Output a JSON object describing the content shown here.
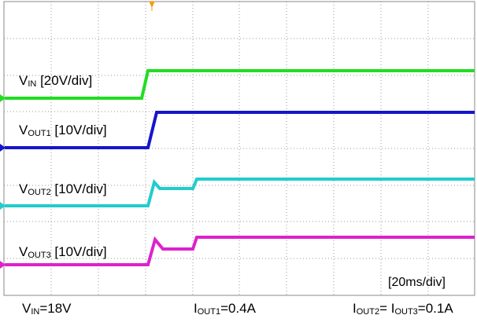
{
  "traces": [
    {
      "main": "V",
      "sub": "IN",
      "scale": "[20V/div]"
    },
    {
      "main": "V",
      "sub": "OUT1",
      "scale": "[10V/div]"
    },
    {
      "main": "V",
      "sub": "OUT2",
      "scale": "[10V/div]"
    },
    {
      "main": "V",
      "sub": "OUT3",
      "scale": "[10V/div]"
    }
  ],
  "timebase": "[20ms/div]",
  "footer": {
    "vin": {
      "main": "V",
      "sub": "IN",
      "rest": "=18V"
    },
    "iout1": {
      "main": "I",
      "sub": "OUT1",
      "rest": "=0.4A"
    },
    "iout23": {
      "main1": "I",
      "sub1": "OUT2",
      "mid": "= I",
      "sub2": "OUT3",
      "rest": "=0.1A"
    }
  }
}
